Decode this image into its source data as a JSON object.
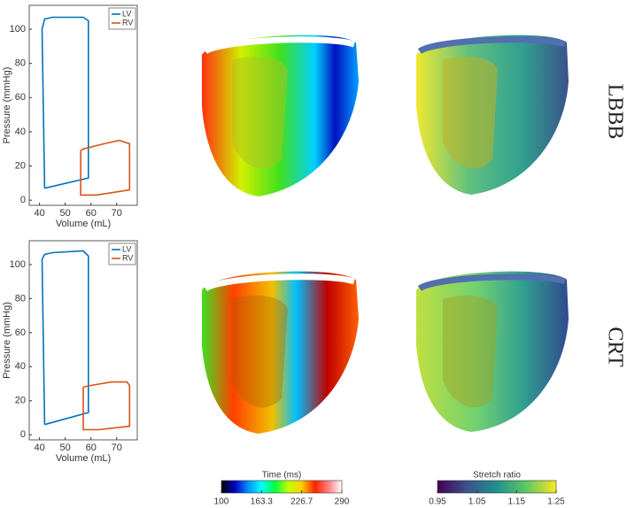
{
  "chart_data": [
    {
      "type": "line",
      "xlabel": "Volume (mL)",
      "ylabel": "Pressure (mmHg)",
      "xlim": [
        36,
        78
      ],
      "ylim": [
        -3,
        114
      ],
      "xticks": [
        40,
        50,
        60,
        70
      ],
      "yticks": [
        0,
        20,
        40,
        60,
        80,
        100
      ],
      "legend": "upper right",
      "series": [
        {
          "name": "LV",
          "color": "#0072bd",
          "x": [
            42,
            41,
            42,
            45,
            57,
            59,
            59,
            42
          ],
          "values": [
            7,
            100,
            106,
            107,
            107,
            105,
            13,
            7
          ]
        },
        {
          "name": "RV",
          "color": "#d95319",
          "x": [
            56,
            57,
            65,
            71,
            75,
            75,
            75,
            62,
            56,
            56
          ],
          "values": [
            29,
            30,
            33,
            35,
            33,
            27,
            6,
            3,
            3,
            29
          ]
        }
      ]
    },
    {
      "type": "line",
      "xlabel": "Volume (mL)",
      "ylabel": "Pressure (mmHg)",
      "xlim": [
        36,
        78
      ],
      "ylim": [
        -3,
        114
      ],
      "xticks": [
        40,
        50,
        60,
        70
      ],
      "yticks": [
        0,
        20,
        40,
        60,
        80,
        100
      ],
      "legend": "upper right",
      "series": [
        {
          "name": "LV",
          "color": "#0072bd",
          "x": [
            42,
            41,
            42,
            45,
            57,
            59,
            59,
            42
          ],
          "values": [
            6,
            103,
            106,
            107,
            108,
            105,
            13,
            6
          ]
        },
        {
          "name": "RV",
          "color": "#d95319",
          "x": [
            57,
            60,
            68,
            74,
            75,
            75,
            63,
            57,
            57
          ],
          "values": [
            28,
            29,
            31,
            31,
            29,
            5,
            3,
            3,
            28
          ]
        }
      ]
    }
  ],
  "row_labels": [
    "LBBB",
    "CRT"
  ],
  "colorbars": [
    {
      "label": "Time (ms)",
      "lim": [
        100,
        290
      ],
      "ticks": [
        100,
        163.3,
        226.7,
        290
      ],
      "colors": [
        "#000000",
        "#0000c0",
        "#0090ff",
        "#00ffff",
        "#00ff40",
        "#c0ff00",
        "#ffd000",
        "#ff2000",
        "#ff8080",
        "#ffffff"
      ]
    },
    {
      "label": "Stretch ratio",
      "lim": [
        0.95,
        1.25
      ],
      "ticks": [
        0.95,
        1.05,
        1.15,
        1.25
      ],
      "colors": [
        "#440154",
        "#3b528b",
        "#21908d",
        "#5dc963",
        "#fde725"
      ]
    }
  ]
}
